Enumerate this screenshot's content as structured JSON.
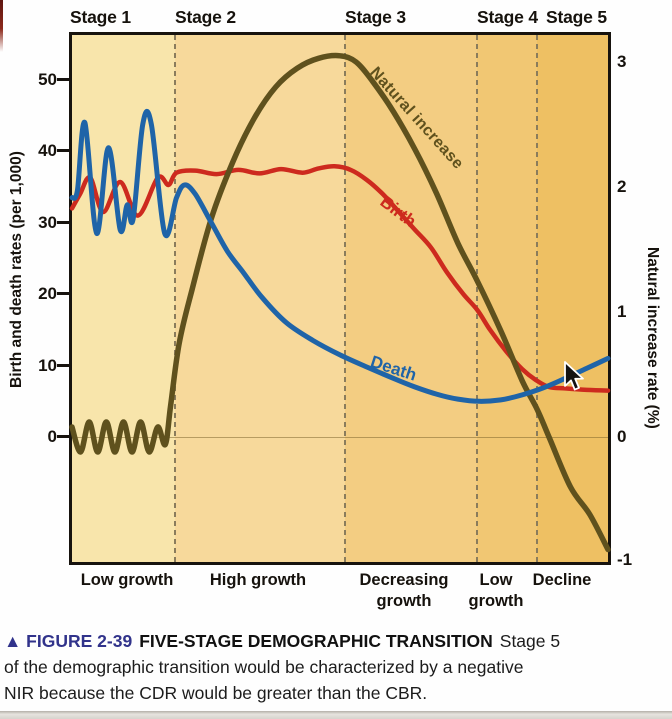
{
  "figure": {
    "stage_labels": [
      "Stage 1",
      "Stage 2",
      "Stage 3",
      "Stage 4",
      "Stage 5"
    ],
    "stage_descriptions": [
      "Low growth",
      "High growth",
      "Decreasing\ngrowth",
      "Low\ngrowth",
      "Decline"
    ],
    "stage_colors": [
      "#f8e5ab",
      "#f7d99b",
      "#f3cd82",
      "#f1c773",
      "#eec063"
    ]
  },
  "left_axis": {
    "title": "Birth and death rates (per 1,000)",
    "ticks": [
      "50",
      "40",
      "30",
      "20",
      "10",
      "0"
    ]
  },
  "right_axis": {
    "title": "Natural increase rate (%)",
    "ticks": [
      "3",
      "2",
      "1",
      "0",
      "-1"
    ]
  },
  "curve_labels": {
    "natural": "Natural increase",
    "birth": "Birth",
    "death": "Death"
  },
  "caption": {
    "figure_label": "▲ FIGURE 2-39",
    "label_color": "#31338b",
    "title": "FIVE-STAGE DEMOGRAPHIC TRANSITION",
    "line1_rest": "Stage 5",
    "line2": "of the demographic transition would be characterized by a negative",
    "line3": "NIR because the CDR would be greater than the CBR."
  },
  "chart_data": {
    "type": "line",
    "title": "Five-stage demographic transition",
    "x_unit": "percent of timeline from Stage 1 to Stage 5",
    "stage_boundaries_x": [
      0,
      19.2,
      50.9,
      75.6,
      86.8,
      100
    ],
    "grid": "off",
    "left_axis": {
      "label": "Birth and death rates (per 1,000)",
      "range": [
        0,
        56
      ],
      "ticks": [
        0,
        10,
        20,
        30,
        40,
        50
      ]
    },
    "right_axis": {
      "label": "Natural increase rate (%)",
      "range": [
        -1,
        3.2
      ],
      "ticks": [
        -1,
        0,
        1,
        2,
        3
      ]
    },
    "series": [
      {
        "name": "Birth",
        "axis": "left",
        "color": "#cd2a1e",
        "width": 4.5,
        "points": [
          [
            0,
            32
          ],
          [
            1.5,
            34
          ],
          [
            3.4,
            36.3
          ],
          [
            5.8,
            31.5
          ],
          [
            9,
            35.7
          ],
          [
            12.3,
            31
          ],
          [
            16,
            36.3
          ],
          [
            18,
            35.3
          ],
          [
            19.5,
            37
          ],
          [
            23,
            37.3
          ],
          [
            27,
            36.8
          ],
          [
            31,
            37.4
          ],
          [
            35,
            36.9
          ],
          [
            39,
            37.5
          ],
          [
            43,
            37
          ],
          [
            46,
            37.6
          ],
          [
            49,
            37.9
          ],
          [
            52,
            37.4
          ],
          [
            55,
            36
          ],
          [
            58,
            34
          ],
          [
            61,
            31.5
          ],
          [
            64,
            29
          ],
          [
            67,
            26.5
          ],
          [
            70,
            23
          ],
          [
            73,
            20
          ],
          [
            75.6,
            17.8
          ],
          [
            78,
            15
          ],
          [
            81,
            12
          ],
          [
            84,
            9.5
          ],
          [
            86.5,
            8
          ],
          [
            89,
            7
          ],
          [
            92,
            6.8
          ],
          [
            96,
            6.6
          ],
          [
            100,
            6.5
          ]
        ]
      },
      {
        "name": "Death",
        "axis": "left",
        "color": "#1f64a8",
        "width": 5,
        "points": [
          [
            0,
            33.5
          ],
          [
            1,
            34.5
          ],
          [
            2.4,
            44
          ],
          [
            4.6,
            28.5
          ],
          [
            6.8,
            40.5
          ],
          [
            9,
            29
          ],
          [
            10.3,
            32.5
          ],
          [
            11.4,
            30.5
          ],
          [
            13.2,
            43.8
          ],
          [
            14.8,
            43.8
          ],
          [
            17.3,
            28.5
          ],
          [
            19.5,
            33.5
          ],
          [
            21,
            35.3
          ],
          [
            23,
            34
          ],
          [
            26,
            30
          ],
          [
            29,
            26
          ],
          [
            32,
            23
          ],
          [
            35.5,
            19.5
          ],
          [
            40,
            16
          ],
          [
            45,
            13.5
          ],
          [
            50,
            11.5
          ],
          [
            55,
            9.8
          ],
          [
            60,
            8.2
          ],
          [
            64,
            7
          ],
          [
            68,
            6
          ],
          [
            72,
            5.3
          ],
          [
            76,
            5
          ],
          [
            80,
            5.2
          ],
          [
            84,
            5.9
          ],
          [
            88,
            6.9
          ],
          [
            92,
            8.2
          ],
          [
            96,
            9.6
          ],
          [
            100,
            11
          ]
        ]
      },
      {
        "name": "Natural increase",
        "axis": "right",
        "color": "#5f511d",
        "width": 5.5,
        "points": [
          [
            0,
            0.08
          ],
          [
            1.6,
            -0.12
          ],
          [
            3.2,
            0.12
          ],
          [
            4.8,
            -0.12
          ],
          [
            6.4,
            0.12
          ],
          [
            8,
            -0.12
          ],
          [
            9.6,
            0.12
          ],
          [
            11.2,
            -0.12
          ],
          [
            12.8,
            0.12
          ],
          [
            14.4,
            -0.12
          ],
          [
            16,
            0.08
          ],
          [
            17.4,
            -0.06
          ],
          [
            18.4,
            0.25
          ],
          [
            20,
            0.75
          ],
          [
            22.4,
            1.18
          ],
          [
            26,
            1.75
          ],
          [
            30,
            2.2
          ],
          [
            34,
            2.55
          ],
          [
            38,
            2.8
          ],
          [
            42,
            2.95
          ],
          [
            46,
            3.03
          ],
          [
            50,
            3.05
          ],
          [
            53,
            3.0
          ],
          [
            56,
            2.85
          ],
          [
            60,
            2.6
          ],
          [
            64,
            2.3
          ],
          [
            68,
            1.95
          ],
          [
            72,
            1.55
          ],
          [
            75.6,
            1.25
          ],
          [
            80,
            0.85
          ],
          [
            84,
            0.45
          ],
          [
            86.8,
            0.22
          ],
          [
            89,
            0
          ],
          [
            93,
            -0.4
          ],
          [
            96.6,
            -0.62
          ],
          [
            100,
            -0.9
          ]
        ]
      }
    ]
  }
}
